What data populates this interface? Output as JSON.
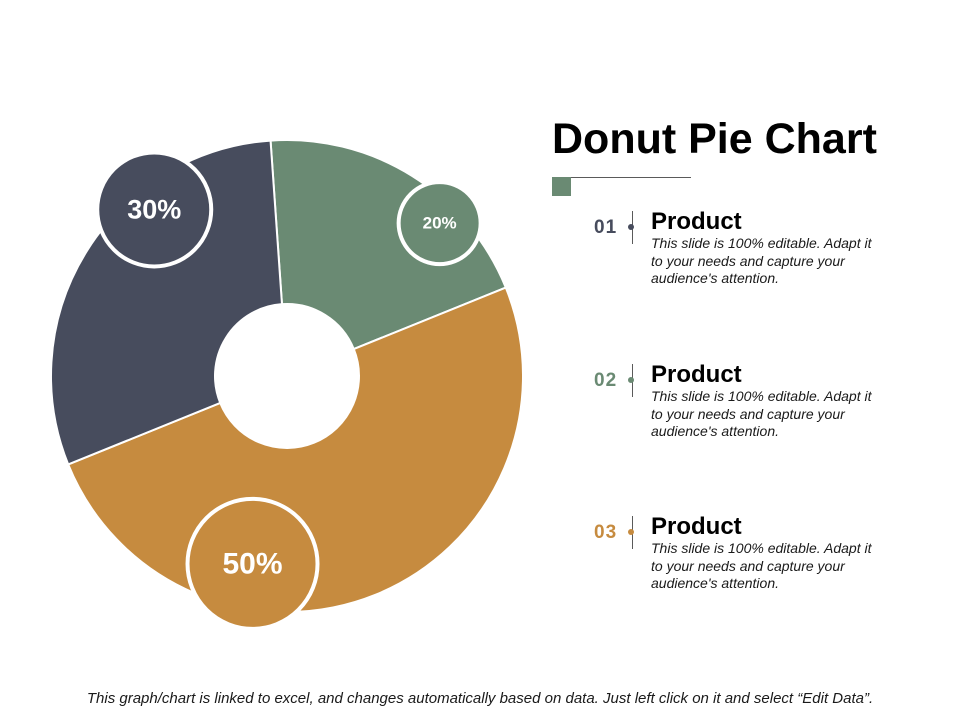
{
  "chart_data": {
    "type": "pie",
    "variant": "donut",
    "title": "Donut Pie Chart",
    "slices": [
      {
        "label": "Product",
        "value": 20,
        "value_label": "20%",
        "color": "#6a8a73"
      },
      {
        "label": "Product",
        "value": 50,
        "value_label": "50%",
        "color": "#c68b3f"
      },
      {
        "label": "Product",
        "value": 30,
        "value_label": "30%",
        "color": "#474c5d"
      }
    ]
  },
  "header": {
    "title": "Donut Pie Chart",
    "accent_color": "#6a8a73"
  },
  "legend": {
    "items": [
      {
        "number": "01",
        "title": "Product",
        "description": "This slide is 100% editable. Adapt it to your needs and capture your audience's attention.",
        "color": "#474c5d"
      },
      {
        "number": "02",
        "title": "Product",
        "description": "This slide is 100% editable. Adapt it to your needs and capture your audience's attention.",
        "color": "#6a8a73"
      },
      {
        "number": "03",
        "title": "Product",
        "description": "This slide is 100% editable. Adapt it to your needs and capture your audience's attention.",
        "color": "#c68b3f"
      }
    ]
  },
  "footnote": "This graph/chart is linked to excel, and changes automatically based on data. Just left click on it and select “Edit Data”."
}
